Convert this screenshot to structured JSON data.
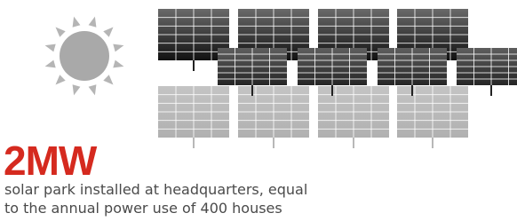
{
  "headline": "2MW",
  "caption": [
    "solar park installed at headquarters, equal",
    "to the annual power use of 400 houses"
  ]
}
